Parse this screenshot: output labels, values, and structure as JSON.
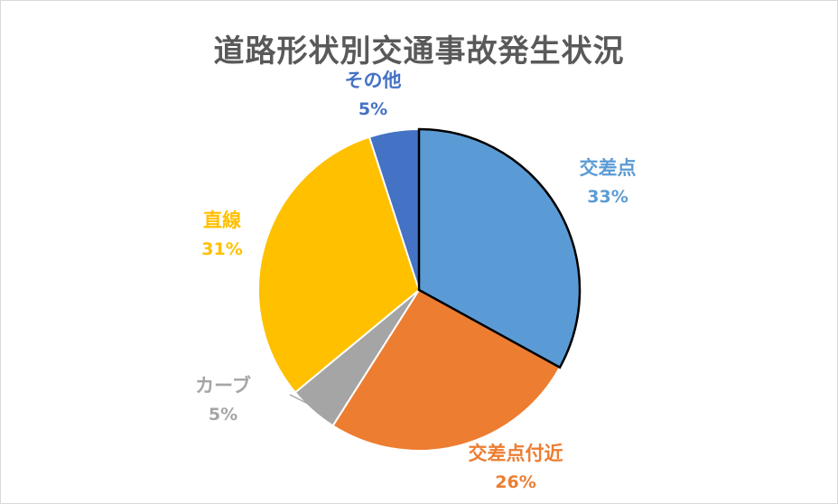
{
  "chart_data": {
    "type": "pie",
    "title": "道路形状別交通事故発生状況",
    "slices": [
      {
        "label": "交差点",
        "percent_label": "33%",
        "value": 33,
        "color": "#5B9BD5"
      },
      {
        "label": "交差点付近",
        "percent_label": "26%",
        "value": 26,
        "color": "#ED7D31"
      },
      {
        "label": "カーブ",
        "percent_label": "5%",
        "value": 5,
        "color": "#A5A5A5"
      },
      {
        "label": "直線",
        "percent_label": "31%",
        "value": 31,
        "color": "#FFC000"
      },
      {
        "label": "その他",
        "percent_label": "5%",
        "value": 5,
        "color": "#4472C4"
      }
    ],
    "start_angle_deg": 0,
    "direction": "clockwise",
    "highlighted_slice": "交差点",
    "legend": "none"
  }
}
